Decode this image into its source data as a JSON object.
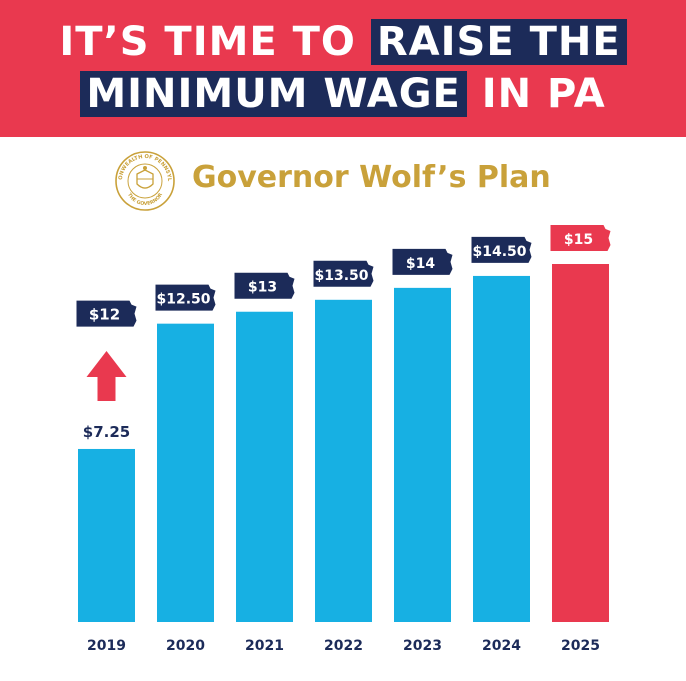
{
  "headline": {
    "line1_plain": "IT’S TIME TO ",
    "line1_highlight": "RAISE THE",
    "line2_highlight": "MINIMUM WAGE",
    "line2_plain": " IN PA"
  },
  "subtitle": {
    "plan_title": "Governor Wolf’s Plan",
    "seal_text_top": "COMMONWEALTH OF PENNSYLVANIA",
    "seal_text_bottom": "THE GOVERNOR"
  },
  "colors": {
    "banner": "#e9394f",
    "highlight": "#1c2b59",
    "bar": "#17b0e3",
    "bar_highlight": "#e9394f",
    "label_bg": "#1c2b59",
    "gold": "#c9a13a",
    "arrow": "#e9394f"
  },
  "chart_data": {
    "type": "bar",
    "categories": [
      "2019",
      "2020",
      "2021",
      "2022",
      "2023",
      "2024",
      "2025"
    ],
    "values": [
      7.25,
      12.5,
      13,
      13.5,
      14,
      14.5,
      15
    ],
    "value_labels": [
      "$7.25",
      "$12.50",
      "$13",
      "$13.50",
      "$14",
      "$14.50",
      "$15"
    ],
    "target_label_2019": "$12",
    "target_value_2019": 12,
    "highlight_category": "2025",
    "ylim": [
      0,
      15
    ],
    "title": "",
    "xlabel": "",
    "ylabel": "",
    "grid": false
  }
}
